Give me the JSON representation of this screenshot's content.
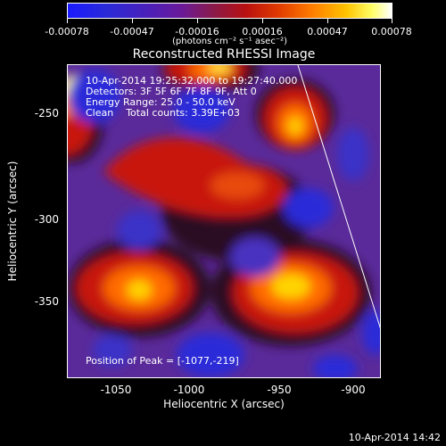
{
  "colorbar": {
    "tick_labels": [
      "-0.00078",
      "-0.00047",
      "-0.00016",
      "0.00016",
      "0.00047",
      "0.00078"
    ],
    "unit_label": "(photons cm⁻² s⁻¹ asec⁻²)",
    "colors": [
      "#1a1aff",
      "#6a1a9a",
      "#b81010",
      "#ff7a00",
      "#ffff66",
      "#ffffff"
    ]
  },
  "title": "Reconstructed RHESSI Image",
  "info_lines": [
    "10-Apr-2014 19:25:32.000 to 19:27:40.000",
    "Detectors: 3F 5F 6F 7F 8F 9F, Att 0",
    "Energy Range: 25.0 - 50.0 keV",
    "Clean    Total counts: 3.39E+03"
  ],
  "peak_text": "Position of Peak = [-1077,-219]",
  "axes": {
    "xlabel": "Heliocentric X (arcsec)",
    "ylabel": "Heliocentric Y (arcsec)",
    "xticks": [
      "-1050",
      "-1000",
      "-950",
      "-900"
    ],
    "yticks": [
      "-250",
      "-300",
      "-350"
    ]
  },
  "timestamp": "10-Apr-2014 14:42"
}
